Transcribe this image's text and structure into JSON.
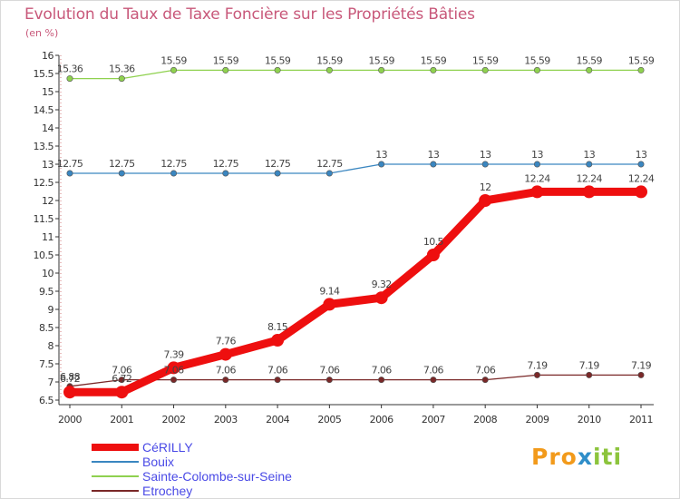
{
  "title": "Evolution du Taux de Taxe Foncière sur les Propriétés Bâties",
  "unit_label": "(en %)",
  "logo": {
    "text": "Proxiti",
    "colors": [
      "#f29a1b",
      "#2f8ec9",
      "#8cc43c"
    ]
  },
  "chart_data": {
    "type": "line",
    "title": "Evolution du Taux de Taxe Foncière sur les Propriétés Bâties",
    "ylabel": "(en %)",
    "xlabel": "",
    "ylim": [
      6.5,
      16
    ],
    "ytick_step": 0.5,
    "grid": false,
    "x": [
      "2000",
      "2001",
      "2002",
      "2003",
      "2004",
      "2005",
      "2006",
      "2007",
      "2008",
      "2009",
      "2010",
      "2011"
    ],
    "series": [
      {
        "name": "CéRILLY",
        "color": "#ee0f0f",
        "values": [
          6.72,
          6.72,
          7.39,
          7.76,
          8.15,
          9.14,
          9.32,
          10.5,
          12,
          12.24,
          12.24,
          12.24
        ]
      },
      {
        "name": "Bouix",
        "color": "#3a86c0",
        "values": [
          12.75,
          12.75,
          12.75,
          12.75,
          12.75,
          12.75,
          13,
          13,
          13,
          13,
          13,
          13
        ]
      },
      {
        "name": "Sainte-Colombe-sur-Seine",
        "color": "#8fd14f",
        "values": [
          15.36,
          15.36,
          15.59,
          15.59,
          15.59,
          15.59,
          15.59,
          15.59,
          15.59,
          15.59,
          15.59,
          15.59
        ]
      },
      {
        "name": "Etrochey",
        "color": "#7a2828",
        "values": [
          6.88,
          7.06,
          7.06,
          7.06,
          7.06,
          7.06,
          7.06,
          7.06,
          7.06,
          7.19,
          7.19,
          7.19
        ]
      }
    ]
  }
}
